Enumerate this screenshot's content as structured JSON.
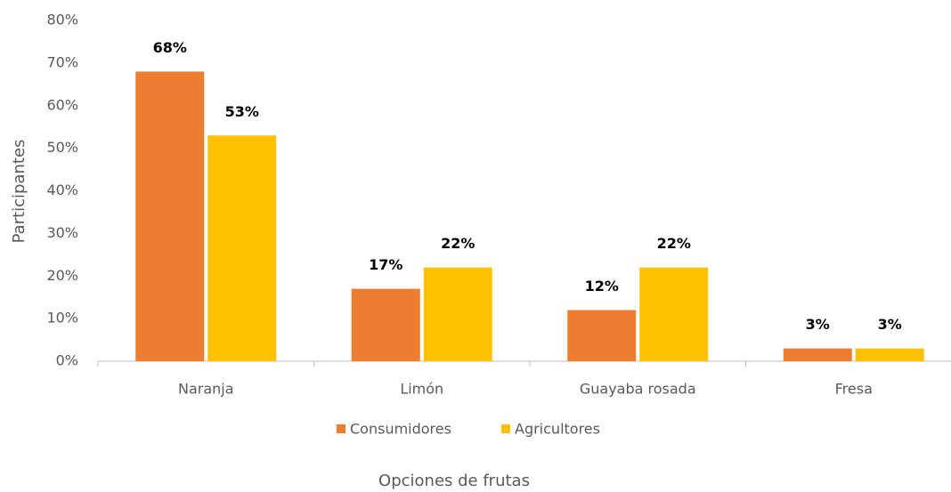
{
  "chart_data": {
    "type": "bar",
    "x_label": "Opciones de frutas",
    "y_label": "Participantes",
    "categories": [
      "Naranja",
      "Limón",
      "Guayaba rosada",
      "Fresa"
    ],
    "series": [
      {
        "name": "Consumidores",
        "color": "#ed7d31",
        "values": [
          68,
          17,
          12,
          3
        ],
        "value_labels": [
          "68%",
          "17%",
          "12%",
          "3%"
        ]
      },
      {
        "name": "Agricultores",
        "color": "#ffc000",
        "values": [
          53,
          22,
          22,
          3
        ],
        "value_labels": [
          "53%",
          "22%",
          "22%",
          "3%"
        ]
      }
    ],
    "ylim": [
      0,
      80
    ],
    "yticks": [
      {
        "value": 0,
        "label": "0%"
      },
      {
        "value": 10,
        "label": "10%"
      },
      {
        "value": 20,
        "label": "20%"
      },
      {
        "value": 30,
        "label": "30%"
      },
      {
        "value": 40,
        "label": "40%"
      },
      {
        "value": 50,
        "label": "50%"
      },
      {
        "value": 60,
        "label": "60%"
      },
      {
        "value": 70,
        "label": "70%"
      },
      {
        "value": 80,
        "label": "80%"
      }
    ],
    "grid": false,
    "legend": "bottom"
  }
}
